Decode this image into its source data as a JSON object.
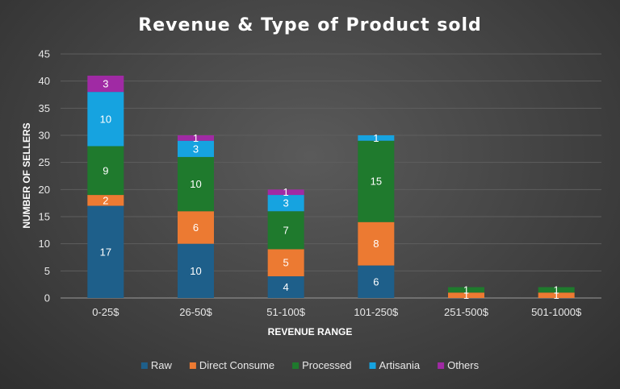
{
  "chart_data": {
    "type": "bar",
    "stacked": true,
    "title": "Revenue & Type of Product sold",
    "xlabel": "REVENUE RANGE",
    "ylabel": "NUMBER OF SELLERS",
    "ylim": [
      0,
      45
    ],
    "yticks": [
      0,
      5,
      10,
      15,
      20,
      25,
      30,
      35,
      40,
      45
    ],
    "grid": true,
    "legend_position": "bottom",
    "categories": [
      "0-25$",
      "26-50$",
      "51-100$",
      "101-250$",
      "251-500$",
      "501-1000$"
    ],
    "series": [
      {
        "name": "Raw",
        "color": "#1e5f8a",
        "values": [
          17,
          10,
          4,
          6,
          0,
          0
        ]
      },
      {
        "name": "Direct Consume",
        "color": "#ec7a32",
        "values": [
          2,
          6,
          5,
          8,
          1,
          1
        ]
      },
      {
        "name": "Processed",
        "color": "#1f7a2d",
        "values": [
          9,
          10,
          7,
          15,
          1,
          1
        ]
      },
      {
        "name": "Artisania",
        "color": "#16a3e0",
        "values": [
          10,
          3,
          3,
          1,
          0,
          0
        ]
      },
      {
        "name": "Others",
        "color": "#a02aa4",
        "values": [
          3,
          1,
          1,
          0,
          0,
          0
        ]
      }
    ]
  }
}
